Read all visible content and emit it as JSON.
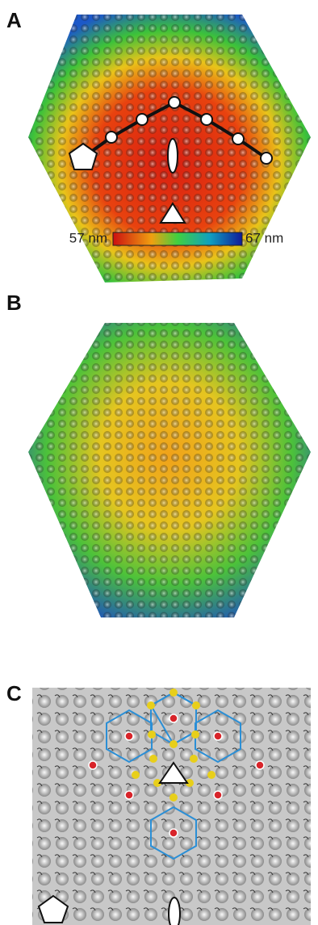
{
  "panels": [
    {
      "label": "A"
    },
    {
      "label": "B"
    },
    {
      "label": "C"
    }
  ],
  "colorbar": {
    "min_label": "57 nm",
    "max_label": "67 nm"
  }
}
